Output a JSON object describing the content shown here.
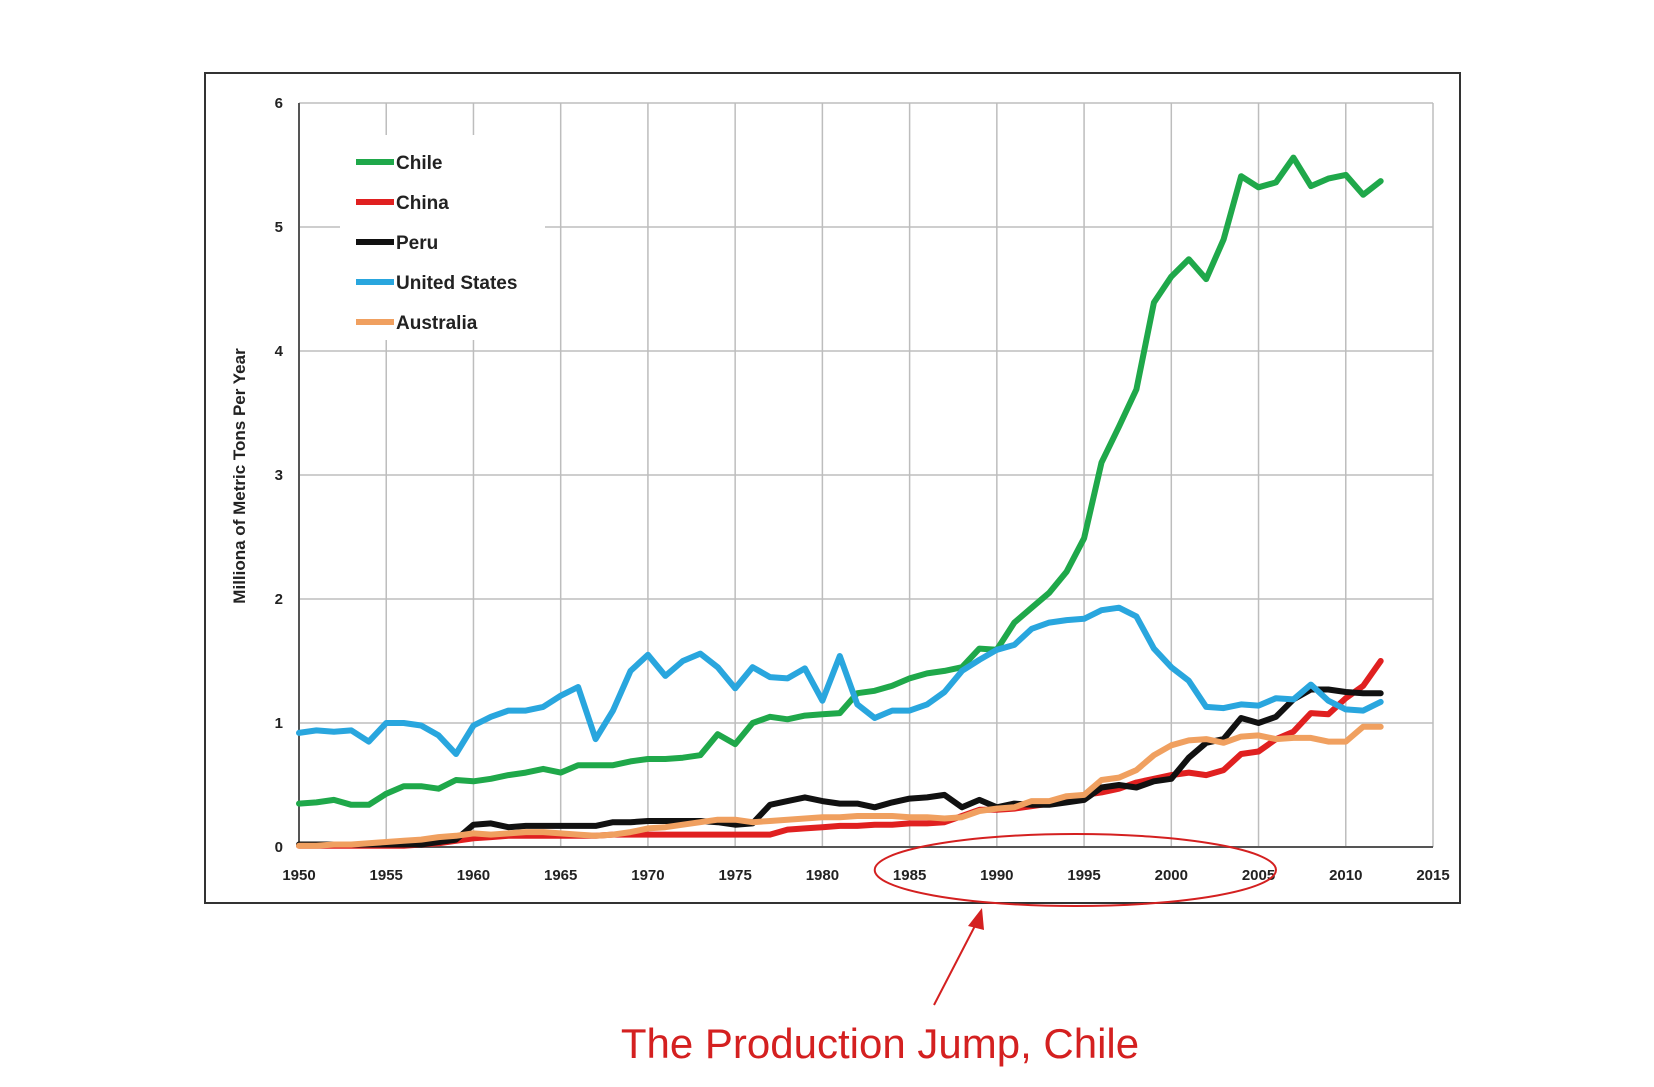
{
  "chart_data": {
    "type": "line",
    "title": "",
    "xlabel": "",
    "ylabel": "Milliona of Metric Tons Per Year",
    "xlim": [
      1950,
      2015
    ],
    "ylim": [
      0,
      6
    ],
    "x_ticks": [
      1950,
      1955,
      1960,
      1965,
      1970,
      1975,
      1980,
      1985,
      1990,
      1995,
      2000,
      2005,
      2010,
      2015
    ],
    "y_ticks": [
      0,
      1,
      2,
      3,
      4,
      5,
      6
    ],
    "grid": true,
    "legend_position": "top-left",
    "x": [
      1950,
      1951,
      1952,
      1953,
      1954,
      1955,
      1956,
      1957,
      1958,
      1959,
      1960,
      1961,
      1962,
      1963,
      1964,
      1965,
      1966,
      1967,
      1968,
      1969,
      1970,
      1971,
      1972,
      1973,
      1974,
      1975,
      1976,
      1977,
      1978,
      1979,
      1980,
      1981,
      1982,
      1983,
      1984,
      1985,
      1986,
      1987,
      1988,
      1989,
      1990,
      1991,
      1992,
      1993,
      1994,
      1995,
      1996,
      1997,
      1998,
      1999,
      2000,
      2001,
      2002,
      2003,
      2004,
      2005,
      2006,
      2007,
      2008,
      2009,
      2010,
      2011,
      2012
    ],
    "series": [
      {
        "name": "Chile",
        "color": "#1fa84a",
        "values": [
          0.35,
          0.36,
          0.38,
          0.34,
          0.34,
          0.43,
          0.49,
          0.49,
          0.47,
          0.54,
          0.53,
          0.55,
          0.58,
          0.6,
          0.63,
          0.6,
          0.66,
          0.66,
          0.66,
          0.69,
          0.71,
          0.71,
          0.72,
          0.74,
          0.91,
          0.83,
          1.0,
          1.05,
          1.03,
          1.06,
          1.07,
          1.08,
          1.24,
          1.26,
          1.3,
          1.36,
          1.4,
          1.42,
          1.45,
          1.6,
          1.59,
          1.81,
          1.93,
          2.05,
          2.22,
          2.49,
          3.1,
          3.39,
          3.69,
          4.39,
          4.6,
          4.74,
          4.58,
          4.9,
          5.41,
          5.32,
          5.36,
          5.56,
          5.33,
          5.39,
          5.42,
          5.26,
          5.37
        ]
      },
      {
        "name": "China",
        "color": "#e02020",
        "values": [
          0.01,
          0.01,
          0.01,
          0.01,
          0.01,
          0.01,
          0.01,
          0.02,
          0.03,
          0.05,
          0.07,
          0.08,
          0.09,
          0.09,
          0.09,
          0.09,
          0.09,
          0.09,
          0.1,
          0.1,
          0.1,
          0.1,
          0.1,
          0.1,
          0.1,
          0.1,
          0.1,
          0.1,
          0.14,
          0.15,
          0.16,
          0.17,
          0.17,
          0.18,
          0.18,
          0.19,
          0.19,
          0.2,
          0.25,
          0.3,
          0.3,
          0.31,
          0.33,
          0.35,
          0.38,
          0.42,
          0.44,
          0.47,
          0.52,
          0.55,
          0.58,
          0.6,
          0.58,
          0.62,
          0.75,
          0.77,
          0.87,
          0.93,
          1.08,
          1.07,
          1.2,
          1.3,
          1.5
        ]
      },
      {
        "name": "Peru",
        "color": "#111111",
        "values": [
          0.02,
          0.02,
          0.02,
          0.02,
          0.02,
          0.02,
          0.02,
          0.02,
          0.04,
          0.06,
          0.18,
          0.19,
          0.16,
          0.17,
          0.17,
          0.17,
          0.17,
          0.17,
          0.2,
          0.2,
          0.21,
          0.21,
          0.21,
          0.21,
          0.2,
          0.18,
          0.19,
          0.34,
          0.37,
          0.4,
          0.37,
          0.35,
          0.35,
          0.32,
          0.36,
          0.39,
          0.4,
          0.42,
          0.32,
          0.38,
          0.32,
          0.35,
          0.34,
          0.34,
          0.36,
          0.38,
          0.48,
          0.5,
          0.48,
          0.53,
          0.55,
          0.72,
          0.84,
          0.87,
          1.04,
          1.0,
          1.05,
          1.19,
          1.27,
          1.27,
          1.25,
          1.24,
          1.24
        ]
      },
      {
        "name": "United States",
        "color": "#29a6de",
        "values": [
          0.92,
          0.94,
          0.93,
          0.94,
          0.85,
          1.0,
          1.0,
          0.98,
          0.9,
          0.75,
          0.98,
          1.05,
          1.1,
          1.1,
          1.13,
          1.22,
          1.29,
          0.87,
          1.1,
          1.42,
          1.55,
          1.38,
          1.5,
          1.56,
          1.45,
          1.28,
          1.45,
          1.37,
          1.36,
          1.44,
          1.18,
          1.54,
          1.15,
          1.04,
          1.1,
          1.1,
          1.15,
          1.25,
          1.42,
          1.51,
          1.59,
          1.63,
          1.76,
          1.81,
          1.83,
          1.84,
          1.91,
          1.93,
          1.86,
          1.6,
          1.45,
          1.34,
          1.13,
          1.12,
          1.15,
          1.14,
          1.2,
          1.19,
          1.31,
          1.18,
          1.11,
          1.1,
          1.17
        ]
      },
      {
        "name": "Australia",
        "color": "#f0a060",
        "values": [
          0.01,
          0.01,
          0.02,
          0.02,
          0.03,
          0.04,
          0.05,
          0.06,
          0.08,
          0.09,
          0.11,
          0.1,
          0.11,
          0.12,
          0.12,
          0.11,
          0.1,
          0.09,
          0.1,
          0.12,
          0.15,
          0.16,
          0.18,
          0.2,
          0.22,
          0.22,
          0.2,
          0.21,
          0.22,
          0.23,
          0.24,
          0.24,
          0.25,
          0.25,
          0.25,
          0.24,
          0.24,
          0.23,
          0.24,
          0.29,
          0.31,
          0.32,
          0.37,
          0.37,
          0.41,
          0.42,
          0.54,
          0.56,
          0.62,
          0.74,
          0.82,
          0.86,
          0.87,
          0.84,
          0.89,
          0.9,
          0.87,
          0.88,
          0.88,
          0.85,
          0.85,
          0.97,
          0.97
        ]
      }
    ]
  },
  "annotation": {
    "text": "The Production Jump, Chile",
    "color": "#d42020",
    "x_range": [
      1983,
      2006
    ]
  }
}
